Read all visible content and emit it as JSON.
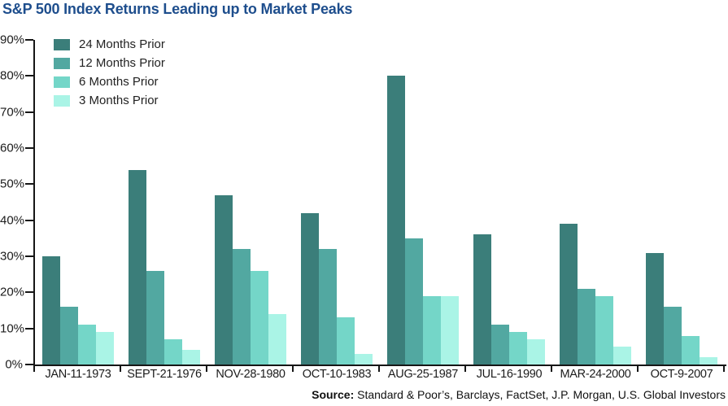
{
  "title": "S&P 500 Index Returns Leading up to Market Peaks",
  "source": {
    "label": "Source:",
    "text": " Standard & Poor’s, Barclays, FactSet, J.P. Morgan, U.S. Global Investors"
  },
  "colors": {
    "title": "#1e4e8d",
    "axis": "#161616",
    "series": [
      "#3b7e7a",
      "#52a8a1",
      "#74d6c8",
      "#aaf4e6"
    ]
  },
  "chart_data": {
    "type": "bar",
    "title": "S&P 500 Index Returns Leading up to Market Peaks",
    "categories": [
      "JAN-11-1973",
      "SEPT-21-1976",
      "NOV-28-1980",
      "OCT-10-1983",
      "AUG-25-1987",
      "JUL-16-1990",
      "MAR-24-2000",
      "OCT-9-2007"
    ],
    "series": [
      {
        "name": "24 Months Prior",
        "color": "#3b7e7a",
        "values": [
          30,
          54,
          47,
          42,
          80,
          36,
          39,
          31
        ]
      },
      {
        "name": "12 Months Prior",
        "color": "#52a8a1",
        "values": [
          16,
          26,
          32,
          32,
          35,
          11,
          21,
          16
        ]
      },
      {
        "name": "6 Months Prior",
        "color": "#74d6c8",
        "values": [
          11,
          7,
          26,
          13,
          19,
          9,
          19,
          8
        ]
      },
      {
        "name": "3 Months Prior",
        "color": "#aaf4e6",
        "values": [
          9,
          4,
          14,
          3,
          19,
          7,
          5,
          2
        ]
      }
    ],
    "xlabel": "",
    "ylabel": "",
    "ylim": [
      0,
      90
    ],
    "ytick_step": 10,
    "ytick_labels": [
      "90%",
      "80%",
      "70%",
      "60%",
      "50%",
      "40%",
      "30%",
      "20%",
      "10%",
      "0%"
    ],
    "grid": false,
    "legend_position": "top-left"
  }
}
